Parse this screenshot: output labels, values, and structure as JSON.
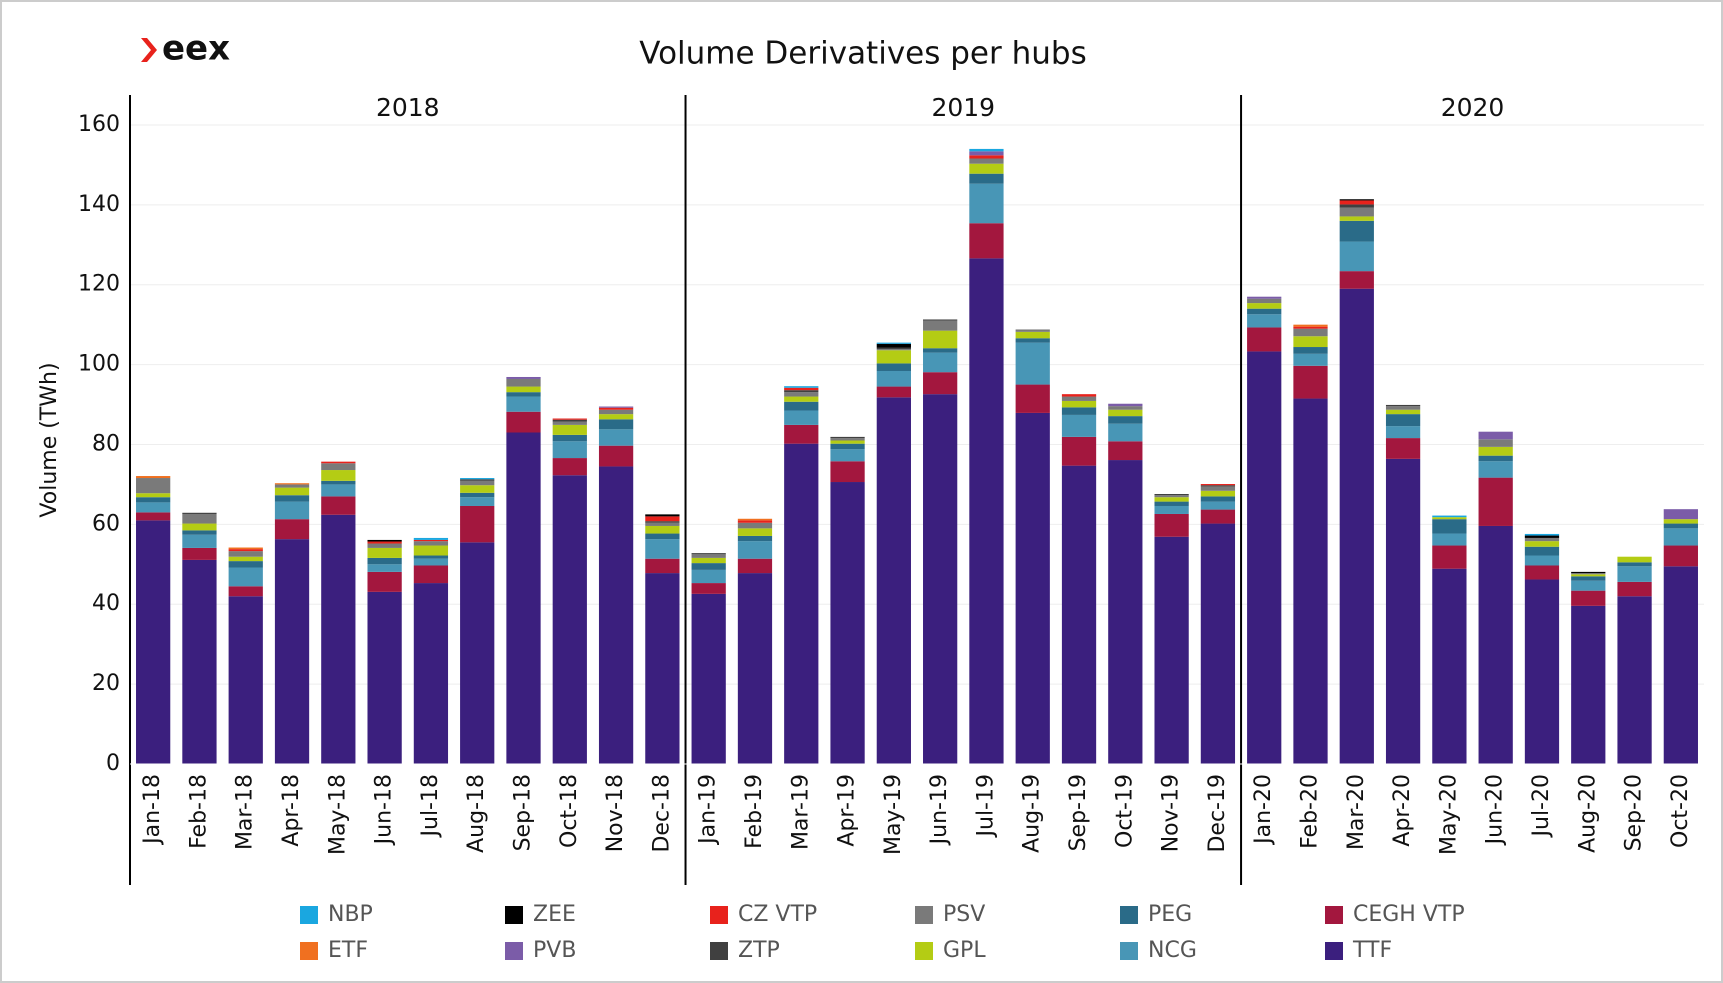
{
  "chart_data": {
    "type": "stacked_bar",
    "logo": "eex",
    "title": "Volume Derivatives per hubs",
    "y_label": "Volume (TWh)",
    "years": [
      "2018",
      "2019",
      "2020"
    ],
    "categories": [
      "Jan-18",
      "Feb-18",
      "Mar-18",
      "Apr-18",
      "May-18",
      "Jun-18",
      "Jul-18",
      "Aug-18",
      "Sep-18",
      "Oct-18",
      "Nov-18",
      "Dec-18",
      "Jan-19",
      "Feb-19",
      "Mar-19",
      "Apr-19",
      "May-19",
      "Jun-19",
      "Jul-19",
      "Aug-19",
      "Sep-19",
      "Oct-19",
      "Nov-19",
      "Dec-19",
      "Jan-20",
      "Feb-20",
      "Mar-20",
      "Apr-20",
      "May-20",
      "Jun-20",
      "Jul-20",
      "Aug-20",
      "Sep-20",
      "Oct-20"
    ],
    "ylim": [
      0,
      167
    ],
    "yticks": [
      0,
      20,
      40,
      60,
      80,
      100,
      120,
      140,
      160
    ],
    "grid": true,
    "legend": "bottom",
    "series": [
      {
        "name": "TTF",
        "color": "#3b1f7e",
        "values": [
          61,
          51.1,
          42,
          56.3,
          62.4,
          43.1,
          45.3,
          55.5,
          83,
          72.3,
          74.5,
          47.8,
          42.6,
          47.8,
          80.2,
          70.6,
          91.8,
          92.6,
          126.6,
          87.9,
          74.7,
          76.1,
          56.9,
          60.2,
          103.3,
          91.5,
          119,
          76.4,
          48.9,
          59.6,
          46.2,
          39.6,
          42,
          49.5
        ]
      },
      {
        "name": "CEGH VTP",
        "color": "#a3173e",
        "values": [
          2,
          3,
          2.5,
          5,
          4.6,
          5,
          4.4,
          9.1,
          5.2,
          4.3,
          5.2,
          3.6,
          2.7,
          3.6,
          4.7,
          5.2,
          2.7,
          5.5,
          8.8,
          7.1,
          7.2,
          4.7,
          5.7,
          3.5,
          6,
          8.2,
          4.4,
          5.2,
          5.8,
          12.1,
          3.5,
          3.8,
          3.6,
          5.2
        ]
      },
      {
        "name": "NCG",
        "color": "#4896b6",
        "values": [
          2.5,
          3.3,
          4.7,
          4.4,
          3,
          1.9,
          1.7,
          2.2,
          3.8,
          4.2,
          4.1,
          4.9,
          3.3,
          4.4,
          3.6,
          3,
          3.9,
          4.9,
          9.9,
          10.5,
          5.5,
          4.4,
          2,
          2,
          3.3,
          3,
          7.4,
          3,
          3,
          4.1,
          2.5,
          2.5,
          3.9,
          4.3
        ]
      },
      {
        "name": "PEG",
        "color": "#2a6b88",
        "values": [
          1.3,
          1.1,
          1.6,
          1.6,
          0.9,
          1.6,
          0.8,
          1.1,
          1.1,
          1.6,
          2.5,
          1.4,
          1.7,
          1.3,
          2.2,
          1.4,
          1.9,
          1.1,
          2.5,
          1.1,
          1.9,
          1.9,
          1.1,
          1.3,
          1.4,
          1.7,
          5.2,
          3,
          3.6,
          1.4,
          2.2,
          1.1,
          1,
          1.2
        ]
      },
      {
        "name": "GPL",
        "color": "#b4cc14",
        "values": [
          1,
          1.7,
          1.1,
          1.9,
          2.7,
          2.5,
          2.5,
          1.9,
          1.4,
          2.5,
          1.3,
          1.9,
          1.3,
          1.9,
          1.3,
          0.8,
          3.3,
          4.4,
          2.5,
          1.6,
          1.6,
          1.6,
          1.1,
          1.4,
          1.4,
          2.7,
          1.1,
          1.1,
          0.5,
          2.2,
          1.4,
          0.5,
          1.4,
          1.1
        ]
      },
      {
        "name": "PSV",
        "color": "#7a7a7a",
        "values": [
          3.8,
          2.4,
          1.4,
          0.8,
          1.7,
          1.1,
          1.1,
          1.1,
          1.9,
          0.8,
          1.1,
          0.8,
          0.9,
          1.4,
          1.1,
          0.6,
          0.3,
          2.5,
          1.3,
          0.6,
          1.1,
          0.9,
          0.5,
          1.1,
          1.1,
          1.9,
          2.2,
          0.9,
          0,
          1.9,
          0.8,
          0.3,
          0,
          0
        ]
      },
      {
        "name": "ZTP",
        "color": "#404040",
        "values": [
          0,
          0.3,
          0,
          0,
          0,
          0,
          0,
          0.4,
          0,
          0.5,
          0,
          0.4,
          0.3,
          0,
          0.5,
          0.3,
          0.3,
          0.3,
          0,
          0,
          0,
          0,
          0.3,
          0.3,
          0,
          0,
          0.8,
          0.3,
          0,
          0,
          0,
          0,
          0,
          0
        ]
      },
      {
        "name": "CZ VTP",
        "color": "#e8221c",
        "values": [
          0,
          0,
          0.5,
          0,
          0.4,
          0.5,
          0.3,
          0,
          0,
          0.3,
          0.5,
          1.2,
          0,
          0.6,
          0.6,
          0,
          0,
          0,
          0.8,
          0,
          0.6,
          0,
          0,
          0.3,
          0,
          0.5,
          1,
          0,
          0,
          0,
          0,
          0,
          0,
          0
        ]
      },
      {
        "name": "PVB",
        "color": "#7b5ca8",
        "values": [
          0,
          0,
          0,
          0,
          0,
          0,
          0,
          0,
          0.5,
          0,
          0.3,
          0,
          0,
          0,
          0,
          0,
          0,
          0,
          1,
          0,
          0,
          0.6,
          0,
          0,
          0.5,
          0,
          0,
          0,
          0,
          1.9,
          0,
          0,
          0,
          2.5
        ]
      },
      {
        "name": "ZEE",
        "color": "#000000",
        "values": [
          0,
          0,
          0,
          0,
          0,
          0.4,
          0,
          0,
          0,
          0,
          0,
          0.5,
          0,
          0,
          0,
          0,
          1,
          0,
          0,
          0,
          0,
          0,
          0,
          0,
          0,
          0,
          0.3,
          0,
          0,
          0,
          0.6,
          0.3,
          0,
          0
        ]
      },
      {
        "name": "ETF",
        "color": "#f07020",
        "values": [
          0.5,
          0,
          0.4,
          0.3,
          0,
          0,
          0,
          0,
          0,
          0,
          0,
          0,
          0,
          0.4,
          0,
          0,
          0,
          0,
          0,
          0,
          0,
          0,
          0,
          0,
          0,
          0.5,
          0,
          0,
          0,
          0,
          0,
          0,
          0,
          0
        ]
      },
      {
        "name": "NBP",
        "color": "#1aa7e0",
        "values": [
          0,
          0,
          0,
          0,
          0,
          0,
          0.5,
          0.3,
          0,
          0,
          0,
          0,
          0,
          0,
          0.4,
          0,
          0.3,
          0,
          0.6,
          0,
          0,
          0,
          0,
          0,
          0,
          0,
          0,
          0,
          0.4,
          0,
          0.4,
          0,
          0,
          0
        ]
      }
    ]
  }
}
